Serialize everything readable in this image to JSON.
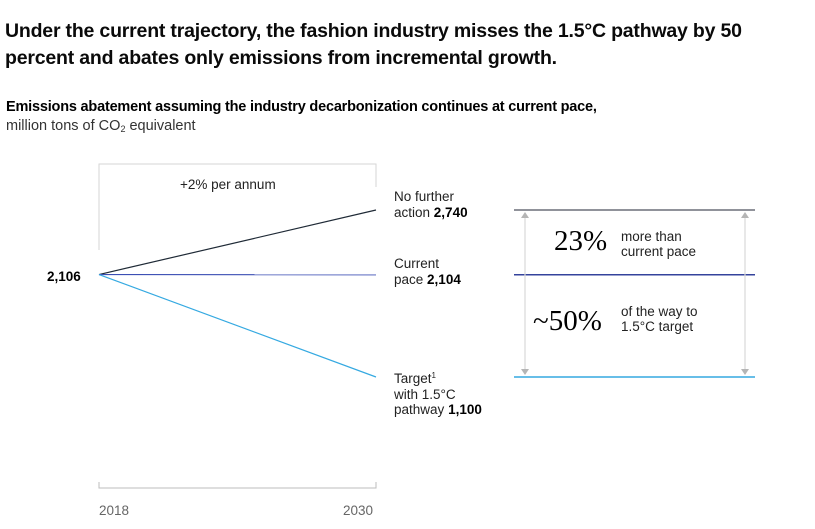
{
  "headline": "Under the current trajectory, the fashion industry misses the 1.5°C pathway by 50 percent and abates only emissions from incremental growth.",
  "subtitle": {
    "bold": "Emissions abatement assuming the industry decarbonization continues at current pace,",
    "unit_pre": "million tons of CO",
    "unit_sub": "2",
    "unit_post": " equivalent"
  },
  "chart_data": {
    "type": "line",
    "title": "Emissions abatement assuming the industry decarbonization continues at current pace",
    "ylabel": "million tons of CO2 equivalent",
    "x": [
      2018,
      2030
    ],
    "x_tick_labels": [
      "2018",
      "2030"
    ],
    "start_value": 2106,
    "start_label": "2,106",
    "growth_annotation": "+2% per annum",
    "series": [
      {
        "name": "No further action",
        "values": [
          2106,
          2740
        ],
        "end_label": "2,740",
        "color": "#1f2a36",
        "label_lines": [
          "No further",
          "action"
        ]
      },
      {
        "name": "Current pace",
        "values": [
          2106,
          2104
        ],
        "end_label": "2,104",
        "color": "#3c4fb4",
        "label_lines": [
          "Current",
          "pace"
        ]
      },
      {
        "name": "Target with 1.5°C pathway",
        "values": [
          2106,
          1100
        ],
        "end_label": "1,100",
        "color": "#35a9e1",
        "label_lines": [
          "Target",
          "with 1.5°C",
          "pathway"
        ],
        "footnote": "1"
      }
    ],
    "comparison": {
      "levels": [
        {
          "name": "No further action",
          "value": 2740,
          "color": "#6b6f78"
        },
        {
          "name": "Current pace",
          "value": 2104,
          "color": "#34439c"
        },
        {
          "name": "Target",
          "value": 1100,
          "color": "#35a9e1"
        }
      ],
      "annotations": [
        {
          "value": "23%",
          "text_lines": [
            "more than",
            "current pace"
          ]
        },
        {
          "value": "~50%",
          "text_lines": [
            "of the way to",
            "1.5°C target"
          ]
        }
      ]
    },
    "yrange": [
      1100,
      2740
    ]
  }
}
